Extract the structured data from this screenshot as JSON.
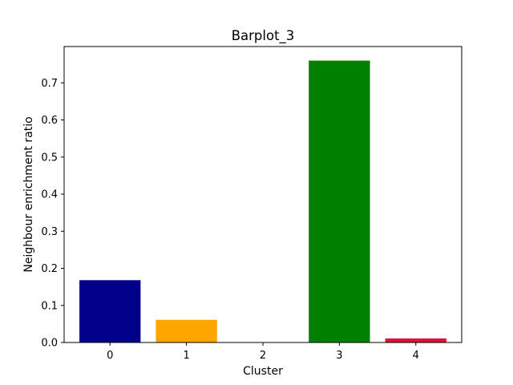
{
  "chart_data": {
    "type": "bar",
    "title": "Barplot_3",
    "xlabel": "Cluster",
    "ylabel": "Neighbour enrichment ratio",
    "categories": [
      "0",
      "1",
      "2",
      "3",
      "4"
    ],
    "values": [
      0.168,
      0.061,
      0.0,
      0.76,
      0.011
    ],
    "colors": [
      "#00008b",
      "#ffa500",
      "#000000",
      "#008000",
      "#dc143c"
    ],
    "ylim": [
      0,
      0.798
    ],
    "yticks": [
      0.0,
      0.1,
      0.2,
      0.3,
      0.4,
      0.5,
      0.6,
      0.7
    ],
    "ytick_labels": [
      "0.0",
      "0.1",
      "0.2",
      "0.3",
      "0.4",
      "0.5",
      "0.6",
      "0.7"
    ],
    "grid": false,
    "legend": "none"
  }
}
